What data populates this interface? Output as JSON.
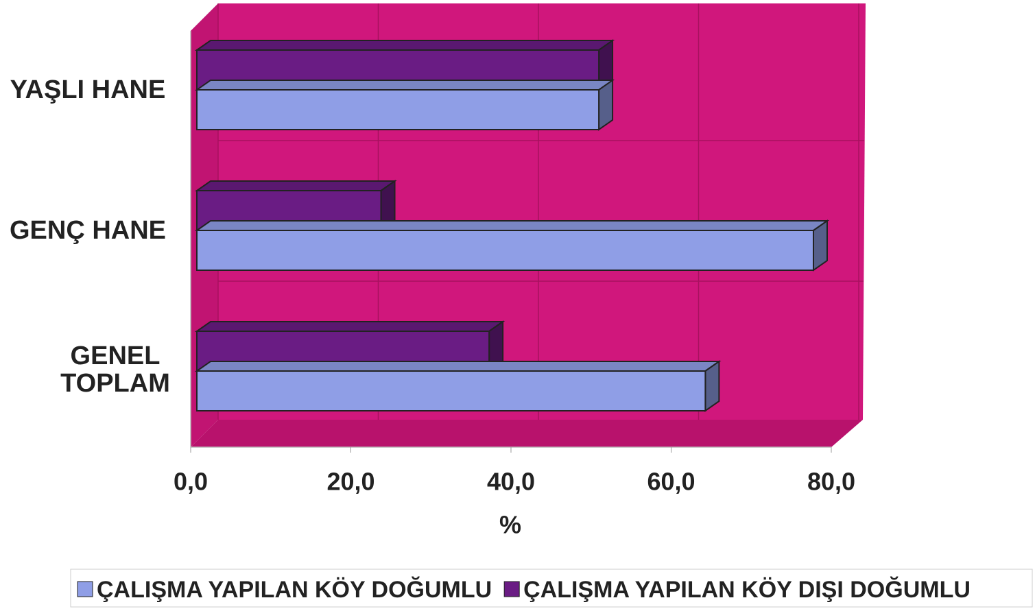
{
  "chart_data": {
    "type": "bar",
    "orientation": "horizontal",
    "categories": [
      "YAŞLI HANE",
      "GENÇ HANE",
      "GENEL TOPLAM"
    ],
    "series": [
      {
        "name": "ÇALIŞMA YAPILAN KÖY DOĞUMLU",
        "color": "#8f9ee6",
        "values": [
          50.2,
          77.0,
          63.5
        ]
      },
      {
        "name": "ÇALIŞMA YAPILAN KÖY DIŞI DOĞUMLU",
        "color": "#6a1c84",
        "values": [
          50.2,
          23.0,
          36.5
        ]
      }
    ],
    "xlabel": "%",
    "xlim": [
      0,
      80
    ],
    "xticks": [
      {
        "value": 0,
        "label": "0,0"
      },
      {
        "value": 20,
        "label": "20,0"
      },
      {
        "value": 40,
        "label": "40,0"
      },
      {
        "value": 60,
        "label": "60,0"
      },
      {
        "value": 80,
        "label": "80,0"
      }
    ],
    "grid": true,
    "legend": "bottom"
  }
}
